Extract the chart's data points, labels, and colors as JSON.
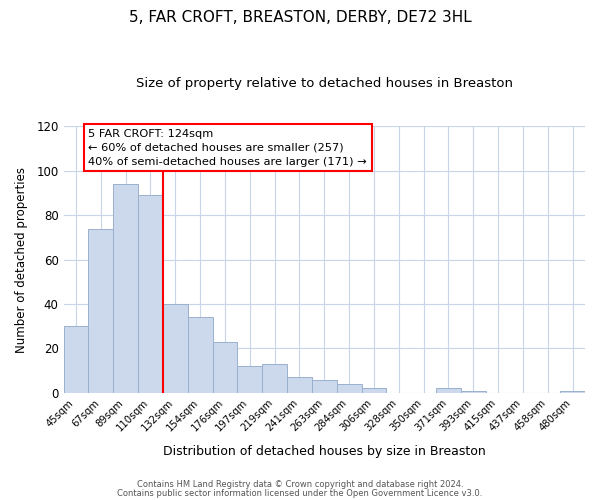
{
  "title": "5, FAR CROFT, BREASTON, DERBY, DE72 3HL",
  "subtitle": "Size of property relative to detached houses in Breaston",
  "xlabel": "Distribution of detached houses by size in Breaston",
  "ylabel": "Number of detached properties",
  "categories": [
    "45sqm",
    "67sqm",
    "89sqm",
    "110sqm",
    "132sqm",
    "154sqm",
    "176sqm",
    "197sqm",
    "219sqm",
    "241sqm",
    "263sqm",
    "284sqm",
    "306sqm",
    "328sqm",
    "350sqm",
    "371sqm",
    "393sqm",
    "415sqm",
    "437sqm",
    "458sqm",
    "480sqm"
  ],
  "values": [
    30,
    74,
    94,
    89,
    40,
    34,
    23,
    12,
    13,
    7,
    6,
    4,
    2,
    0,
    0,
    2,
    1,
    0,
    0,
    0,
    1
  ],
  "bar_color": "#ccd9ed",
  "bar_edge_color": "#9ab0cc",
  "redline_between": [
    3,
    4
  ],
  "annotation_title": "5 FAR CROFT: 124sqm",
  "annotation_line1": "← 60% of detached houses are smaller (257)",
  "annotation_line2": "40% of semi-detached houses are larger (171) →",
  "ylim": [
    0,
    120
  ],
  "yticks": [
    0,
    20,
    40,
    60,
    80,
    100,
    120
  ],
  "footer1": "Contains HM Land Registry data © Crown copyright and database right 2024.",
  "footer2": "Contains public sector information licensed under the Open Government Licence v3.0.",
  "bg_color": "#ffffff",
  "grid_color": "#c8d4e8"
}
